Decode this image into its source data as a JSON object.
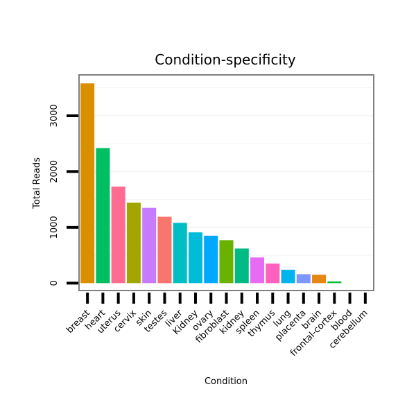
{
  "chart_data": {
    "type": "bar",
    "title": "Condition-specificity",
    "xlabel": "Condition",
    "ylabel": "Total Reads",
    "ylim": [
      -120,
      3720
    ],
    "yticks": [
      0,
      1000,
      2000,
      3000
    ],
    "grid": true,
    "categories": [
      "breast",
      "heart",
      "uterus",
      "cervix",
      "skin",
      "testes",
      "liver",
      "Kidney",
      "ovary",
      "fibroblast",
      "kidney",
      "spleen",
      "thymus",
      "lung",
      "placenta",
      "brain",
      "frontal-cortex",
      "blood",
      "cerebellum"
    ],
    "values": [
      3580,
      2420,
      1730,
      1440,
      1350,
      1190,
      1080,
      910,
      850,
      770,
      620,
      460,
      350,
      240,
      160,
      150,
      30,
      0,
      0
    ],
    "colors": [
      "#D89000",
      "#00BF63",
      "#FF6C91",
      "#A3A500",
      "#C77CFF",
      "#F8766D",
      "#00BFC4",
      "#00BCD8",
      "#00A9FF",
      "#6BB100",
      "#00BA86",
      "#E76BF3",
      "#FF62BC",
      "#00B4F0",
      "#7F96FF",
      "#E68613",
      "#00BD2B",
      "#9590FF",
      "#FF67A4"
    ]
  }
}
